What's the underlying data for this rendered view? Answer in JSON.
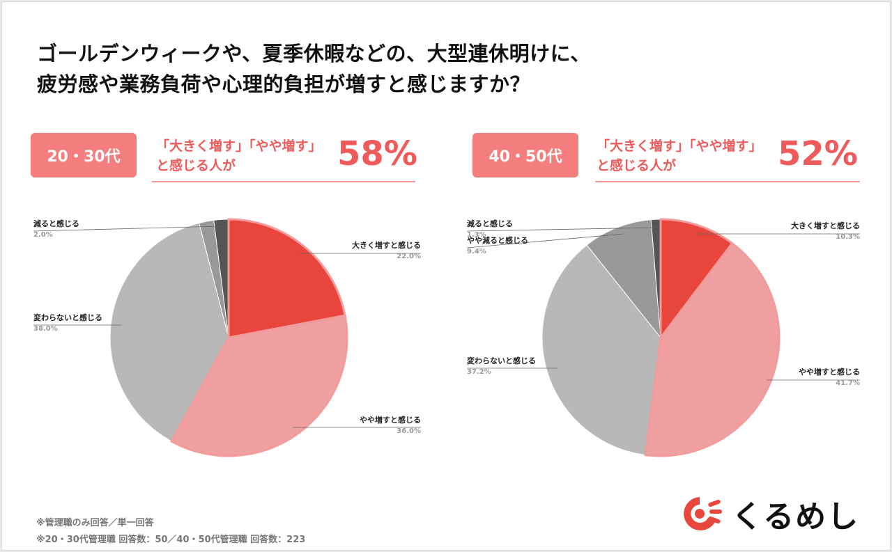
{
  "title": {
    "line1": "ゴールデンウィークや、夏季休暇などの、大型連休明けに、",
    "line2": "疲労感や業務負荷や心理的負担が増すと感じますか？"
  },
  "panels": [
    {
      "badge": "20・30代",
      "summary_line1": "「大きく増す」「やや増す」",
      "summary_line2": "と感じる人が",
      "percent": "58%"
    },
    {
      "badge": "40・50代",
      "summary_line1": "「大きく増す」「やや増す」",
      "summary_line2": "と感じる人が",
      "percent": "52%"
    }
  ],
  "chart_data": [
    {
      "type": "pie",
      "title": "20・30代",
      "categories": [
        "大きく増すと感じる",
        "やや増すと感じる",
        "変わらないと感じる",
        "やや減ると感じる",
        "減ると感じる"
      ],
      "values": [
        22.0,
        36.0,
        38.0,
        2.0,
        2.0
      ],
      "labels": [
        {
          "name": "大きく増すと感じる",
          "value": "22.0%"
        },
        {
          "name": "やや増すと感じる",
          "value": "36.0%"
        },
        {
          "name": "変わらないと感じる",
          "value": "38.0%"
        },
        {
          "name": "減ると感じる",
          "value": "2.0%"
        }
      ],
      "colors": [
        "#e8453c",
        "#f0a0a0",
        "#b8b8b8",
        "#999999",
        "#555555"
      ]
    },
    {
      "type": "pie",
      "title": "40・50代",
      "categories": [
        "大きく増すと感じる",
        "やや増すと感じる",
        "変わらないと感じる",
        "やや減ると感じる",
        "減ると感じる"
      ],
      "values": [
        10.3,
        41.7,
        37.2,
        9.4,
        1.3
      ],
      "labels": [
        {
          "name": "大きく増すと感じる",
          "value": "10.3%"
        },
        {
          "name": "やや増すと感じる",
          "value": "41.7%"
        },
        {
          "name": "変わらないと感じる",
          "value": "37.2%"
        },
        {
          "name": "やや減ると感じる",
          "value": "9.4%"
        },
        {
          "name": "減ると感じる",
          "value": "1.3%"
        }
      ],
      "colors": [
        "#e8453c",
        "#f0a0a0",
        "#b8b8b8",
        "#999999",
        "#555555"
      ]
    }
  ],
  "footnotes": {
    "line1": "※管理職のみ回答／単一回答",
    "line2": "※20・30代管理職 回答数：50／40・50代管理職 回答数：223"
  },
  "logo": {
    "text": "くるめし"
  }
}
